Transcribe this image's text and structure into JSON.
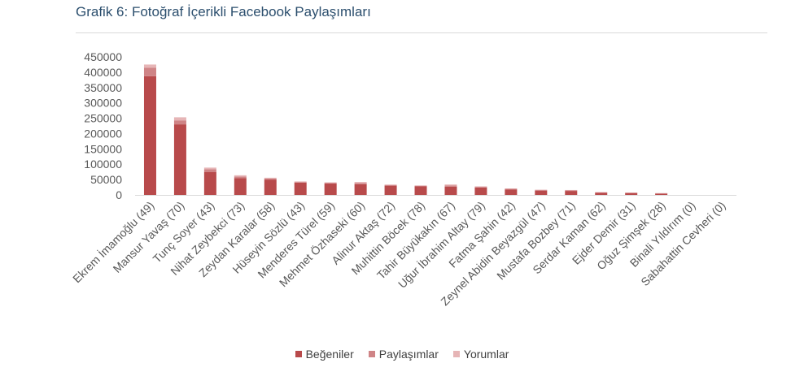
{
  "title": "Grafik 6: Fotoğraf İçerikli Facebook Paylaşımları",
  "colors": {
    "begeniler": "#b84a4b",
    "paylasimlar": "#cf8486",
    "yorumlar": "#e6b5b6"
  },
  "chart_data": {
    "type": "bar",
    "stacked": true,
    "categories": [
      "Ekrem İmamoğlu (49)",
      "Mansur Yavaş (70)",
      "Tunç Soyer (43)",
      "Nihat Zeybekci (73)",
      "Zeydan Karalar (58)",
      "Hüseyin Sözlü (43)",
      "Menderes Türel (59)",
      "Mehmet Özhaseki (60)",
      "Alinur Aktaş (72)",
      "Muhittin Böcek (78)",
      "Tahir Büyükakın (67)",
      "Uğur İbrahim Altay (79)",
      "Fatma Şahin (42)",
      "Zeynel Abidin Beyazgül (47)",
      "Mustafa Bozbey (71)",
      "Serdar Kaman (62)",
      "Ejder Demir (31)",
      "Oğuz Şimşek (28)",
      "Binali Yıldırım (0)",
      "Sabahattin Cevheri (0)"
    ],
    "series": [
      {
        "name": "Beğeniler",
        "values": [
          387000,
          230000,
          75000,
          55000,
          50000,
          40000,
          37000,
          35000,
          30000,
          28000,
          27000,
          24000,
          18000,
          14000,
          13000,
          7000,
          6000,
          4000,
          0,
          0
        ]
      },
      {
        "name": "Paylaşımlar",
        "values": [
          28000,
          13000,
          9000,
          5000,
          3000,
          2000,
          2000,
          4000,
          2000,
          2000,
          4000,
          2000,
          2000,
          2000,
          2000,
          1000,
          1000,
          1000,
          0,
          0
        ]
      },
      {
        "name": "Yorumlar",
        "values": [
          10000,
          10000,
          5000,
          4000,
          3000,
          2000,
          2000,
          3000,
          2000,
          1000,
          3000,
          2000,
          1000,
          1000,
          1000,
          1000,
          1000,
          1000,
          0,
          0
        ]
      }
    ],
    "ylim": [
      0,
      450000
    ],
    "yticks": [
      0,
      50000,
      100000,
      150000,
      200000,
      250000,
      300000,
      350000,
      400000,
      450000
    ],
    "grid": false,
    "legend": "bottom"
  }
}
